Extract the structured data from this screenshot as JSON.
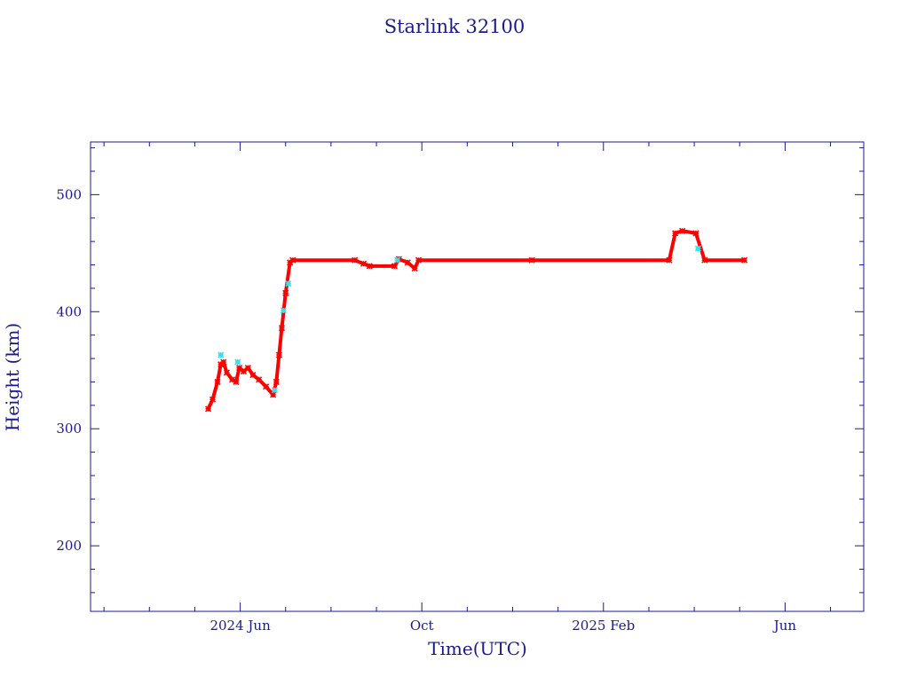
{
  "chart_data": {
    "type": "scatter",
    "title": "Starlink 32100",
    "x_label": "Time(UTC)",
    "y_label": "Height (km)",
    "xlim": [
      2024.142,
      2025.561
    ],
    "ylim": [
      144,
      545
    ],
    "xticks": [
      {
        "value": 2024.4167,
        "label": "2024 Jun"
      },
      {
        "value": 2024.75,
        "label": "Oct"
      },
      {
        "value": 2025.0833,
        "label": "2025 Feb"
      },
      {
        "value": 2025.4167,
        "label": "Jun"
      }
    ],
    "xminorticks": [
      2024.1667,
      2024.25,
      2024.3333,
      2024.5,
      2024.5833,
      2024.6667,
      2024.8333,
      2024.9167,
      2025.0,
      2025.1667,
      2025.25,
      2025.3333,
      2025.5
    ],
    "yticks": [
      200,
      300,
      400,
      500
    ],
    "yminorticks": [
      160,
      180,
      220,
      240,
      260,
      280,
      320,
      340,
      360,
      380,
      420,
      440,
      460,
      480,
      520,
      540
    ],
    "series": [
      {
        "color": "#ff0000",
        "x": [
          2024.358,
          2024.366,
          2024.375,
          2024.381,
          2024.386,
          2024.392,
          2024.402,
          2024.409,
          2024.415,
          2024.423,
          2024.431,
          2024.44,
          2024.451,
          2024.464,
          2024.477,
          2024.483,
          2024.488,
          2024.493,
          2024.5,
          2024.508,
          2024.513,
          2024.627,
          2024.643,
          2024.654,
          2024.7,
          2024.708,
          2024.724,
          2024.737,
          2024.744,
          2024.952,
          2025.204,
          2025.215,
          2025.228,
          2025.253,
          2025.269,
          2025.342
        ],
        "values": [
          317,
          325,
          340,
          355,
          357,
          348,
          342,
          340,
          352,
          349,
          352,
          346,
          342,
          336,
          329,
          340,
          363,
          386,
          416,
          442,
          444,
          444,
          441,
          439,
          439,
          445,
          442,
          437,
          444,
          444,
          444,
          467,
          469,
          467,
          444,
          444
        ]
      },
      {
        "color": "#33e0f0",
        "x": [
          2024.381,
          2024.412,
          2024.48,
          2024.496,
          2024.505,
          2024.705,
          2025.257
        ],
        "values": [
          363,
          357,
          333,
          401,
          424,
          444,
          454
        ]
      }
    ]
  }
}
